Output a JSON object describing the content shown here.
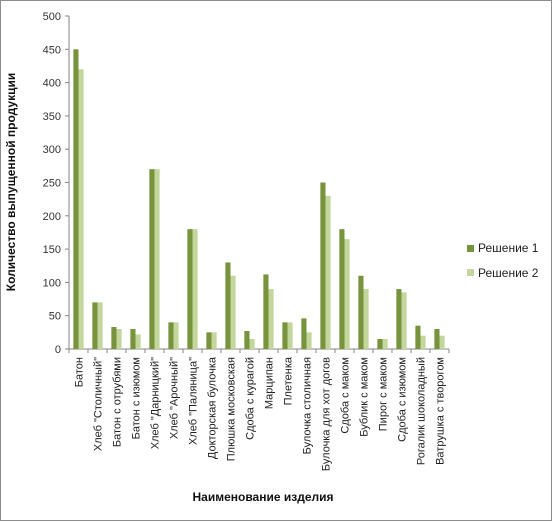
{
  "chart_data": {
    "type": "bar",
    "title": "",
    "xlabel": "Наименование изделия",
    "ylabel": "Количество выпущенной продукции",
    "ylim": [
      0,
      500
    ],
    "yticks": [
      0,
      50,
      100,
      150,
      200,
      250,
      300,
      350,
      400,
      450,
      500
    ],
    "grid": false,
    "legend_position": "right",
    "categories": [
      "Батон",
      "Хлеб \"Столичный\"",
      "Батон с отрубями",
      "Батон с изюмом",
      "Хлеб \"Дарницкий\"",
      "Хлеб \"Арочный\"",
      "Хлеб \"Паляница\"",
      "Докторская булочка",
      "Плюшка московская",
      "Сдоба с курагой",
      "Марципан",
      "Плетенка",
      "Булочка столичная",
      "Булочка для хот догов",
      "Сдоба с маком",
      "Бублик с маком",
      "Пирог с маком",
      "Сдоба с изюмом",
      "Рогалик шоколадный",
      "Ватрушка с творогом"
    ],
    "series": [
      {
        "name": "Решение 1",
        "color": "#77933c",
        "values": [
          450,
          70,
          33,
          30,
          270,
          40,
          180,
          25,
          130,
          27,
          112,
          40,
          46,
          250,
          180,
          110,
          15,
          90,
          35,
          30
        ]
      },
      {
        "name": "Решение 2",
        "color": "#c3d69b",
        "values": [
          420,
          70,
          30,
          22,
          270,
          40,
          180,
          25,
          110,
          15,
          90,
          40,
          25,
          230,
          165,
          90,
          15,
          85,
          20,
          20
        ]
      }
    ]
  }
}
